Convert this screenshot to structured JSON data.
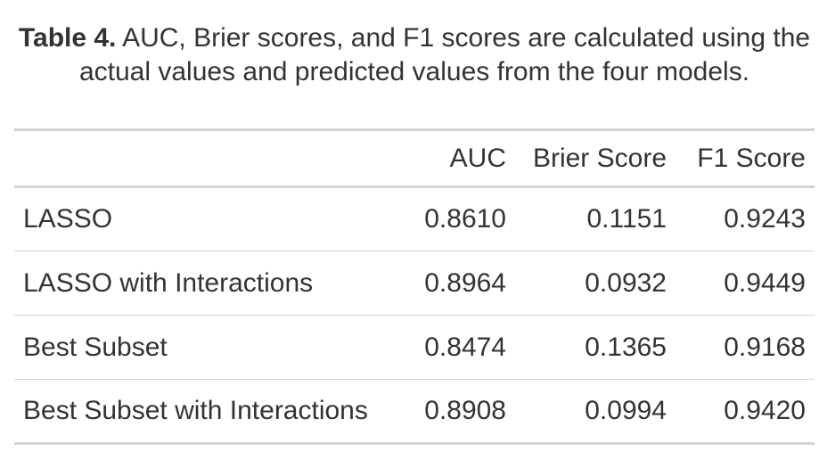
{
  "caption": {
    "label": "Table 4.",
    "text": " AUC, Brier scores, and F1 scores are calculated using the actual values and predicted values from the four models."
  },
  "table": {
    "columns": [
      "",
      "AUC",
      "Brier Score",
      "F1 Score"
    ],
    "rows": [
      {
        "model": "LASSO",
        "auc": "0.8610",
        "brier": "0.1151",
        "f1": "0.9243"
      },
      {
        "model": "LASSO with Interactions",
        "auc": "0.8964",
        "brier": "0.0932",
        "f1": "0.9449"
      },
      {
        "model": "Best Subset",
        "auc": "0.8474",
        "brier": "0.1365",
        "f1": "0.9168"
      },
      {
        "model": "Best Subset with Interactions",
        "auc": "0.8908",
        "brier": "0.0994",
        "f1": "0.9420"
      }
    ]
  }
}
